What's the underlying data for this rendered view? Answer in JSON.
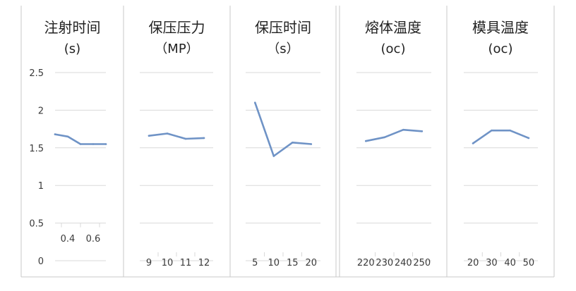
{
  "colors": {
    "line": "#6f93c6",
    "grid": "#d9d9d9",
    "border": "#c8c8c8",
    "text": "#3a3a3a",
    "title": "#222222"
  },
  "y_tick_labels": [
    "2.5",
    "2",
    "1.5",
    "1",
    "0.5",
    "0"
  ],
  "chart_data": [
    {
      "type": "line",
      "title": "注射时间",
      "subtitle": "(s)",
      "categories": [
        "0.4",
        "0.6"
      ],
      "x_tick_values": [
        0.4,
        0.6
      ],
      "x": [
        0.3,
        0.4,
        0.5,
        0.6,
        0.7
      ],
      "values": [
        1.68,
        1.65,
        1.55,
        1.55,
        1.55
      ],
      "ylim": [
        0,
        2.5
      ],
      "grid": true
    },
    {
      "type": "line",
      "title": "保压压力",
      "subtitle": "（MP）",
      "categories": [
        "9",
        "10",
        "11",
        "12"
      ],
      "values": [
        1.66,
        1.69,
        1.62,
        1.63
      ],
      "ylim": [
        0,
        2.5
      ],
      "grid": true
    },
    {
      "type": "line",
      "title": "保压时间",
      "subtitle": "（s）",
      "categories": [
        "5",
        "10",
        "15",
        "20"
      ],
      "values": [
        2.1,
        1.39,
        1.57,
        1.55
      ],
      "ylim": [
        0,
        2.5
      ],
      "grid": true
    },
    {
      "type": "line",
      "title": "熔体温度",
      "subtitle": "(oc)",
      "categories": [
        "220",
        "230",
        "240",
        "250"
      ],
      "values": [
        1.59,
        1.64,
        1.74,
        1.72
      ],
      "ylim": [
        0,
        2.5
      ],
      "grid": true
    },
    {
      "type": "line",
      "title": "模具温度",
      "subtitle": "(oc)",
      "categories": [
        "20",
        "30",
        "40",
        "50"
      ],
      "values": [
        1.56,
        1.73,
        1.73,
        1.63
      ],
      "ylim": [
        0,
        2.5
      ],
      "grid": true
    }
  ]
}
